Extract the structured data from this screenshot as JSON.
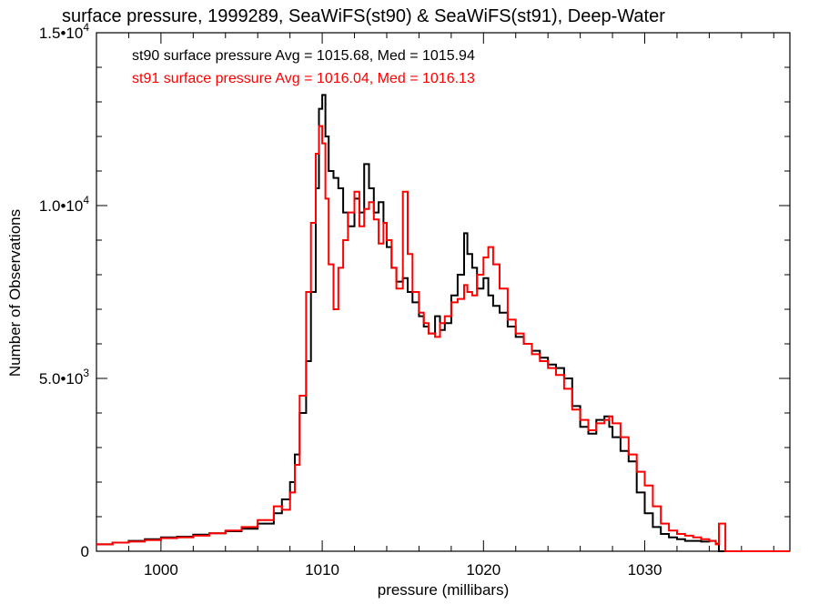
{
  "chart_data": {
    "type": "line",
    "title": "surface pressure, 1999289, SeaWiFS(st90) & SeaWiFS(st91), Deep-Water",
    "xlabel": "pressure (millibars)",
    "ylabel": "Number of Observations",
    "xlim": [
      996,
      1039
    ],
    "ylim": [
      0,
      15000
    ],
    "x_ticks": [
      {
        "value": 1000,
        "label": "1000"
      },
      {
        "value": 1010,
        "label": "1010"
      },
      {
        "value": 1020,
        "label": "1020"
      },
      {
        "value": 1030,
        "label": "1030"
      }
    ],
    "y_ticks": [
      {
        "value": 0,
        "mant": "0",
        "exp": ""
      },
      {
        "value": 5000,
        "mant": "5.0•10",
        "exp": "3"
      },
      {
        "value": 10000,
        "mant": "1.0•10",
        "exp": "4"
      },
      {
        "value": 15000,
        "mant": "1.5•10",
        "exp": "4"
      }
    ],
    "grid": false,
    "legend_position": "top-left",
    "series": [
      {
        "name": "st90",
        "color": "#000000",
        "label": "st90 surface pressure Avg = 1015.68, Med = 1015.94",
        "x": [
          996,
          997,
          998,
          999,
          1000,
          1001,
          1002,
          1003,
          1004,
          1005,
          1006,
          1007,
          1007.5,
          1008,
          1008.3,
          1008.6,
          1009,
          1009.3,
          1009.6,
          1009.8,
          1010,
          1010.2,
          1010.4,
          1010.7,
          1011,
          1011.3,
          1011.6,
          1012,
          1012.3,
          1012.6,
          1012.9,
          1013.2,
          1013.5,
          1013.8,
          1014,
          1014.3,
          1014.6,
          1015,
          1015.3,
          1015.6,
          1016,
          1016.3,
          1016.6,
          1017,
          1017.3,
          1017.6,
          1018,
          1018.4,
          1018.8,
          1019,
          1019.3,
          1019.6,
          1020,
          1020.3,
          1020.6,
          1021,
          1021.5,
          1022,
          1022.5,
          1023,
          1023.5,
          1024,
          1024.5,
          1025,
          1025.5,
          1026,
          1026.5,
          1027,
          1027.5,
          1027.8,
          1028,
          1028.5,
          1029,
          1029.5,
          1030,
          1030.5,
          1031,
          1031.5,
          1032,
          1032.5,
          1033,
          1033.5,
          1034,
          1034.4,
          1034.6,
          1035,
          1036,
          1037,
          1038,
          1039
        ],
        "y": [
          200,
          250,
          300,
          350,
          400,
          420,
          480,
          520,
          580,
          650,
          800,
          1100,
          1500,
          2000,
          2800,
          4000,
          5500,
          7500,
          10500,
          12800,
          13200,
          12000,
          11000,
          10800,
          10500,
          9800,
          9400,
          10200,
          9800,
          11200,
          10500,
          9800,
          10100,
          9500,
          8800,
          8200,
          7800,
          7900,
          7500,
          7200,
          6800,
          6500,
          6300,
          6800,
          6400,
          6600,
          7400,
          8000,
          9200,
          8600,
          8200,
          7600,
          7900,
          7400,
          7100,
          6900,
          6500,
          6200,
          6000,
          5800,
          5600,
          5400,
          5300,
          5000,
          4200,
          3600,
          3400,
          3800,
          3900,
          3600,
          3300,
          2900,
          2600,
          1700,
          1100,
          700,
          500,
          400,
          350,
          300,
          300,
          280,
          300,
          220,
          0,
          0,
          0,
          0,
          0,
          0
        ]
      },
      {
        "name": "st91",
        "color": "#ff0000",
        "label": "st91 surface pressure Avg = 1016.04, Med = 1016.13",
        "x": [
          996,
          997,
          998,
          999,
          1000,
          1001,
          1002,
          1003,
          1004,
          1005,
          1006,
          1007,
          1007.5,
          1008,
          1008.3,
          1008.6,
          1009,
          1009.3,
          1009.6,
          1009.8,
          1010,
          1010.2,
          1010.4,
          1010.7,
          1011,
          1011.3,
          1011.6,
          1012,
          1012.3,
          1012.6,
          1012.9,
          1013.2,
          1013.5,
          1013.8,
          1014,
          1014.3,
          1014.6,
          1015,
          1015.3,
          1015.6,
          1016,
          1016.3,
          1016.6,
          1017,
          1017.3,
          1017.6,
          1018,
          1018.4,
          1018.8,
          1019,
          1019.3,
          1019.6,
          1020,
          1020.3,
          1020.6,
          1021,
          1021.5,
          1022,
          1022.5,
          1023,
          1023.5,
          1024,
          1024.5,
          1025,
          1025.5,
          1026,
          1026.5,
          1027,
          1027.5,
          1027.8,
          1028,
          1028.5,
          1029,
          1029.5,
          1030,
          1030.5,
          1031,
          1031.5,
          1032,
          1032.5,
          1033,
          1033.5,
          1034,
          1034.4,
          1034.6,
          1035,
          1036,
          1037,
          1038,
          1039
        ],
        "y": [
          200,
          250,
          280,
          320,
          380,
          400,
          450,
          520,
          600,
          700,
          900,
          1300,
          1200,
          1700,
          2500,
          4500,
          7500,
          9500,
          11500,
          12300,
          11800,
          10200,
          8300,
          7000,
          8200,
          9000,
          9800,
          10400,
          9400,
          9900,
          10100,
          9600,
          8900,
          9500,
          9000,
          8200,
          7600,
          10400,
          8600,
          7500,
          6900,
          6600,
          6300,
          6200,
          6600,
          6800,
          7200,
          7300,
          7700,
          7500,
          7400,
          8000,
          8500,
          8800,
          8300,
          7600,
          6700,
          6300,
          6000,
          5700,
          5500,
          5300,
          5100,
          4700,
          4100,
          3800,
          3500,
          3700,
          3800,
          3900,
          3700,
          3300,
          2800,
          2300,
          1900,
          1300,
          800,
          600,
          500,
          450,
          400,
          350,
          300,
          200,
          800,
          0,
          0,
          0,
          0,
          0
        ]
      }
    ]
  }
}
